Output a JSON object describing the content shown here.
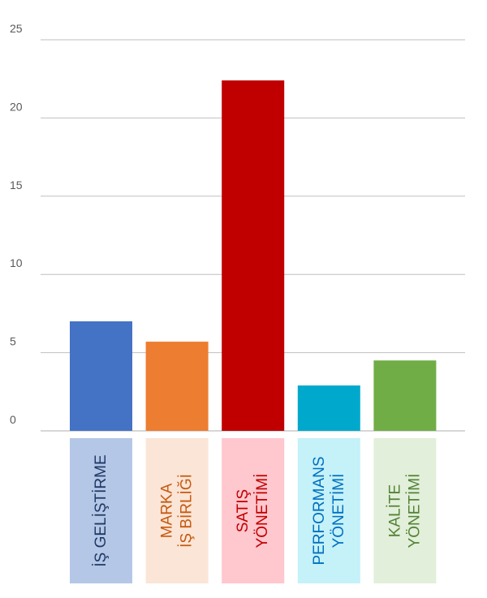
{
  "chart_data": {
    "type": "bar",
    "title": "",
    "xlabel": "",
    "ylabel": "",
    "ylim": [
      0,
      25
    ],
    "yticks": [
      0,
      5,
      10,
      15,
      20,
      25
    ],
    "grid": true,
    "legend": "none",
    "categories": [
      {
        "lines": [
          "İŞ GELİŞTİRME"
        ],
        "bar_color": "#4472C4",
        "label_bg": "#B4C7E7",
        "label_color": "#1F3864"
      },
      {
        "lines": [
          "MARKA",
          "İŞ BİRLİĞİ"
        ],
        "bar_color": "#ED7D31",
        "label_bg": "#FBE5D6",
        "label_color": "#C55A11"
      },
      {
        "lines": [
          "SATIŞ",
          "YÖNETİMİ"
        ],
        "bar_color": "#C00000",
        "label_bg": "#FFC7CE",
        "label_color": "#C00000"
      },
      {
        "lines": [
          "PERFORMANS",
          "YÖNETİMİ"
        ],
        "bar_color": "#00A9CC",
        "label_bg": "#C5F1F9",
        "label_color": "#0070C0"
      },
      {
        "lines": [
          "KALİTE",
          "YÖNETİMİ"
        ],
        "bar_color": "#70AD47",
        "label_bg": "#E2EFDA",
        "label_color": "#548235"
      }
    ],
    "values": [
      7,
      5.7,
      22.4,
      2.9,
      4.5
    ]
  }
}
